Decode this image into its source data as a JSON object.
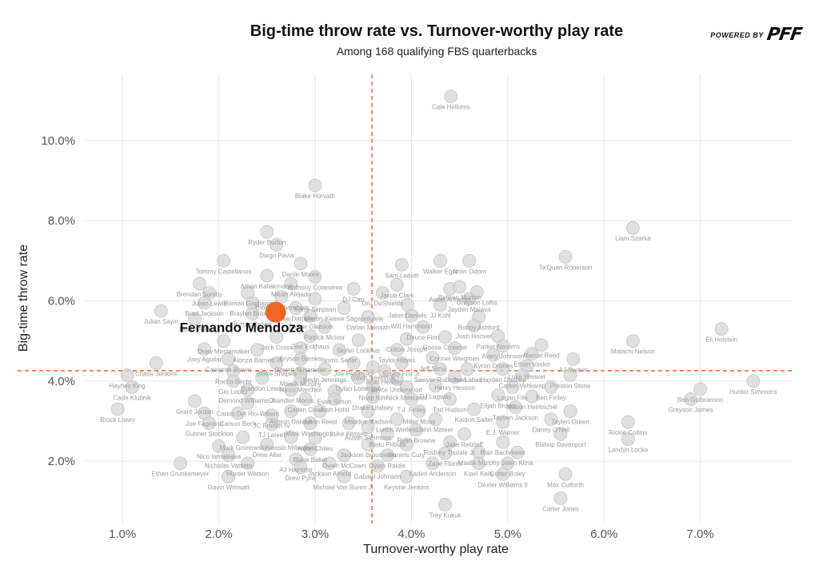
{
  "header": {
    "title": "Big-time throw rate vs. Turnover-worthy play rate",
    "subtitle": "Among 168 qualifying FBS quarterbacks",
    "brand_small": "POWERED BY",
    "brand_logo": "PFF"
  },
  "colors": {
    "highlight": "#f26522",
    "point": "#d6d6d6",
    "grid": "#e6e6e6",
    "refline": "#f26522"
  },
  "chart_data": {
    "type": "scatter",
    "title": "Big-time throw rate vs. Turnover-worthy play rate",
    "subtitle": "Among 168 qualifying FBS quarterbacks",
    "xlabel": "Turnover-worthy play rate",
    "ylabel": "Big-time throw rate",
    "xlim": [
      0.6,
      7.95
    ],
    "ylim": [
      0.45,
      11.65
    ],
    "xticks": [
      1.0,
      2.0,
      3.0,
      4.0,
      5.0,
      6.0,
      7.0
    ],
    "yticks": [
      2.0,
      4.0,
      6.0,
      8.0,
      10.0
    ],
    "xtick_labels": [
      "1.0%",
      "2.0%",
      "3.0%",
      "4.0%",
      "5.0%",
      "6.0%",
      "7.0%"
    ],
    "ytick_labels": [
      "2.0%",
      "4.0%",
      "6.0%",
      "8.0%",
      "10.0%"
    ],
    "grid": true,
    "ref_lines": {
      "x": 3.59,
      "y": 4.26
    },
    "highlight": {
      "name": "Fernando Mendoza",
      "x": 2.59,
      "y": 5.72
    },
    "points": [
      {
        "name": "Cale Hellums",
        "x": 4.41,
        "y": 11.1
      },
      {
        "name": "Blake Horvath",
        "x": 3.0,
        "y": 8.88
      },
      {
        "name": "Liam Szarka",
        "x": 6.3,
        "y": 7.82
      },
      {
        "name": "Ryder Burton",
        "x": 2.5,
        "y": 7.72
      },
      {
        "name": "Diego Pavia",
        "x": 2.6,
        "y": 7.4
      },
      {
        "name": "Tommy Castellanos",
        "x": 2.05,
        "y": 7.0
      },
      {
        "name": "Dante Moore",
        "x": 2.85,
        "y": 6.93
      },
      {
        "name": "Walker Eget",
        "x": 4.3,
        "y": 7.0
      },
      {
        "name": "Amin Odom",
        "x": 4.6,
        "y": 7.0
      },
      {
        "name": "Ta'Quan Roberson",
        "x": 5.6,
        "y": 7.1
      },
      {
        "name": "Sam Leavitt",
        "x": 3.9,
        "y": 6.9
      },
      {
        "name": "Athan Kaliakmanis",
        "x": 2.5,
        "y": 6.63
      },
      {
        "name": "Anthony Colandrea",
        "x": 3.0,
        "y": 6.6
      },
      {
        "name": "Brendan Sorsby",
        "x": 1.8,
        "y": 6.43
      },
      {
        "name": "Micah Alejado",
        "x": 2.75,
        "y": 6.43
      },
      {
        "name": "Jacob Clark",
        "x": 3.85,
        "y": 6.4
      },
      {
        "name": "Aidan Armenta",
        "x": 4.4,
        "y": 6.3
      },
      {
        "name": "Behren Morton",
        "x": 4.5,
        "y": 6.35
      },
      {
        "name": "Grayson Loftis",
        "x": 4.68,
        "y": 6.22
      },
      {
        "name": "Julian Lewis",
        "x": 1.9,
        "y": 6.2
      },
      {
        "name": "Roman Gagliano",
        "x": 2.3,
        "y": 6.2
      },
      {
        "name": "DJ Carr",
        "x": 3.4,
        "y": 6.3
      },
      {
        "name": "Dru DeShields",
        "x": 3.7,
        "y": 6.2
      },
      {
        "name": "Jayden Maiava",
        "x": 4.6,
        "y": 6.05
      },
      {
        "name": "Thomas Chambers",
        "x": 2.65,
        "y": 6.1
      },
      {
        "name": "Kerry Simpson",
        "x": 3.0,
        "y": 6.05
      },
      {
        "name": "Brad Jackson",
        "x": 1.85,
        "y": 5.95
      },
      {
        "name": "Braylon Braxton",
        "x": 2.35,
        "y": 5.95
      },
      {
        "name": "Jalon Daniels",
        "x": 3.96,
        "y": 5.9
      },
      {
        "name": "JJ Kohl",
        "x": 4.3,
        "y": 5.9
      },
      {
        "name": "Julian Sayin",
        "x": 1.4,
        "y": 5.75
      },
      {
        "name": "Luke Dampier",
        "x": 2.8,
        "y": 5.82
      },
      {
        "name": "Maron-Keawe Sagapolutele",
        "x": 3.3,
        "y": 5.82
      },
      {
        "name": "Byrum Brown",
        "x": 2.35,
        "y": 5.68
      },
      {
        "name": "Tucker Gleason",
        "x": 2.95,
        "y": 5.62
      },
      {
        "name": "Darian Mensah",
        "x": 3.55,
        "y": 5.6
      },
      {
        "name": "Will Hammond",
        "x": 4.0,
        "y": 5.63
      },
      {
        "name": "Bobby Ashford",
        "x": 4.7,
        "y": 5.6
      },
      {
        "name": "Noah Fifita",
        "x": 1.75,
        "y": 5.55
      },
      {
        "name": "Patrick McIvor",
        "x": 3.1,
        "y": 5.35
      },
      {
        "name": "Deuce Finn",
        "x": 4.12,
        "y": 5.35
      },
      {
        "name": "Josh Hoover",
        "x": 4.65,
        "y": 5.38
      },
      {
        "name": "Eli Holstein",
        "x": 7.22,
        "y": 5.3
      },
      {
        "name": "Jack Cross",
        "x": 2.6,
        "y": 5.1
      },
      {
        "name": "Zevi Eckhaus",
        "x": 2.95,
        "y": 5.12
      },
      {
        "name": "Skyler Locklear",
        "x": 3.45,
        "y": 5.02
      },
      {
        "name": "Colton Joseph",
        "x": 3.95,
        "y": 5.05
      },
      {
        "name": "Goose Crowder",
        "x": 4.35,
        "y": 5.1
      },
      {
        "name": "Parker Navarro",
        "x": 4.9,
        "y": 5.12
      },
      {
        "name": "Drew Mestemaker",
        "x": 2.05,
        "y": 5.0
      },
      {
        "name": "Malachi Nelson",
        "x": 6.3,
        "y": 5.0
      },
      {
        "name": "Bryson Barnes",
        "x": 2.85,
        "y": 4.82
      },
      {
        "name": "Norris Seiter",
        "x": 3.25,
        "y": 4.78
      },
      {
        "name": "Taylor Hayes",
        "x": 3.85,
        "y": 4.78
      },
      {
        "name": "Conner Weigman",
        "x": 4.45,
        "y": 4.82
      },
      {
        "name": "Avery Johnson",
        "x": 4.95,
        "y": 4.88
      },
      {
        "name": "Marcel Reed",
        "x": 5.35,
        "y": 4.9
      },
      {
        "name": "Joey Aguilar",
        "x": 1.85,
        "y": 4.8
      },
      {
        "name": "Alonza Barnett III",
        "x": 2.4,
        "y": 4.78
      },
      {
        "name": "Kyron Drones",
        "x": 4.85,
        "y": 4.65
      },
      {
        "name": "Ethan Vasko",
        "x": 5.25,
        "y": 4.68
      },
      {
        "name": "AJ Swann",
        "x": 5.68,
        "y": 4.55
      },
      {
        "name": "Garrett Nussmeier",
        "x": 2.85,
        "y": 4.55
      },
      {
        "name": "Jeff Sims",
        "x": 4.22,
        "y": 4.58
      },
      {
        "name": "Cameron Brown",
        "x": 2.1,
        "y": 4.55
      },
      {
        "name": "Blake Shapen",
        "x": 2.6,
        "y": 4.45
      },
      {
        "name": "Joe Pesansky",
        "x": 3.4,
        "y": 4.45
      },
      {
        "name": "Scotty Fox Jr.",
        "x": 3.9,
        "y": 4.45
      },
      {
        "name": "Luke Weaver",
        "x": 5.2,
        "y": 4.38
      },
      {
        "name": "Chase Jenkins",
        "x": 1.35,
        "y": 4.45
      },
      {
        "name": "Kevin Jennings",
        "x": 3.1,
        "y": 4.3
      },
      {
        "name": "Gavin Sawchuk",
        "x": 3.6,
        "y": 4.35
      },
      {
        "name": "Sawyer Robertson",
        "x": 4.3,
        "y": 4.3
      },
      {
        "name": "Joe Labas",
        "x": 4.58,
        "y": 4.3
      },
      {
        "name": "Hayden Dencey",
        "x": 4.95,
        "y": 4.3
      },
      {
        "name": "Rocco Becht",
        "x": 2.15,
        "y": 4.25
      },
      {
        "name": "Haynes King",
        "x": 1.05,
        "y": 4.15
      },
      {
        "name": "Maalik Murphy",
        "x": 2.85,
        "y": 4.2
      },
      {
        "name": "Aron Heatley",
        "x": 3.72,
        "y": 4.25
      },
      {
        "name": "Henry Hesson",
        "x": 4.45,
        "y": 4.1
      },
      {
        "name": "Caden Veltkamp",
        "x": 5.15,
        "y": 4.15
      },
      {
        "name": "Preston Stone",
        "x": 5.65,
        "y": 4.15
      },
      {
        "name": "Hunter Simmons",
        "x": 7.55,
        "y": 4.0
      },
      {
        "name": "Brandon Lewis",
        "x": 2.45,
        "y": 4.08
      },
      {
        "name": "Nicco Marchiol",
        "x": 2.85,
        "y": 4.05
      },
      {
        "name": "Dylan Lonergan",
        "x": 3.45,
        "y": 4.08
      },
      {
        "name": "Bryce Underwood",
        "x": 3.85,
        "y": 4.05
      },
      {
        "name": "Gio Lopez",
        "x": 2.15,
        "y": 4.0
      },
      {
        "name": "Cade Klubnik",
        "x": 1.1,
        "y": 3.85
      },
      {
        "name": "Noah Kim",
        "x": 3.6,
        "y": 3.85
      },
      {
        "name": "Nick Minicucci",
        "x": 3.95,
        "y": 3.85
      },
      {
        "name": "DJ Lagway",
        "x": 4.25,
        "y": 3.88
      },
      {
        "name": "Logan Fife",
        "x": 5.05,
        "y": 3.85
      },
      {
        "name": "Ben Finley",
        "x": 5.45,
        "y": 3.85
      },
      {
        "name": "Ben Gulbranson",
        "x": 7.0,
        "y": 3.8
      },
      {
        "name": "Demond Williams Jr.",
        "x": 2.3,
        "y": 3.78
      },
      {
        "name": "Chandler Morris",
        "x": 2.75,
        "y": 3.78
      },
      {
        "name": "Evan Simon",
        "x": 3.2,
        "y": 3.75
      },
      {
        "name": "Elijah Brown",
        "x": 4.9,
        "y": 3.65
      },
      {
        "name": "Mason Heintschel",
        "x": 5.25,
        "y": 3.62
      },
      {
        "name": "Caden Creel",
        "x": 2.9,
        "y": 3.55
      },
      {
        "name": "Josh Holst",
        "x": 3.2,
        "y": 3.55
      },
      {
        "name": "Drake Lindsey",
        "x": 3.6,
        "y": 3.6
      },
      {
        "name": "T.J. Finley",
        "x": 4.0,
        "y": 3.55
      },
      {
        "name": "Tad Hudson",
        "x": 4.4,
        "y": 3.55
      },
      {
        "name": "Grayson James",
        "x": 6.9,
        "y": 3.55
      },
      {
        "name": "Grant Jordan",
        "x": 1.75,
        "y": 3.5
      },
      {
        "name": "Carlos Del Rio-Wilson",
        "x": 2.3,
        "y": 3.45
      },
      {
        "name": "Kaidon Salter",
        "x": 4.65,
        "y": 3.3
      },
      {
        "name": "Tayven Jackson",
        "x": 5.08,
        "y": 3.35
      },
      {
        "name": "Taylen Green",
        "x": 5.65,
        "y": 3.25
      },
      {
        "name": "Brock Lowry",
        "x": 0.95,
        "y": 3.3
      },
      {
        "name": "Ashton Daniels",
        "x": 2.75,
        "y": 3.25
      },
      {
        "name": "Julian Reed",
        "x": 3.05,
        "y": 3.25
      },
      {
        "name": "Maddux Madsen",
        "x": 3.55,
        "y": 3.25
      },
      {
        "name": "Miller Moss",
        "x": 4.08,
        "y": 3.25
      },
      {
        "name": "Joe Fagnano",
        "x": 1.85,
        "y": 3.2
      },
      {
        "name": "Carson Beck",
        "x": 2.2,
        "y": 3.2
      },
      {
        "name": "JC French IV",
        "x": 2.55,
        "y": 3.15
      },
      {
        "name": "Danny O'Neil",
        "x": 5.45,
        "y": 3.05
      },
      {
        "name": "Lunch Winfield",
        "x": 3.85,
        "y": 3.05
      },
      {
        "name": "John Mateer",
        "x": 4.25,
        "y": 3.05
      },
      {
        "name": "E.J. Warner",
        "x": 4.95,
        "y": 2.98
      },
      {
        "name": "Rickie Collins",
        "x": 6.25,
        "y": 2.98
      },
      {
        "name": "Gunner Stockton",
        "x": 1.9,
        "y": 2.95
      },
      {
        "name": "TJ Lateef",
        "x": 2.55,
        "y": 2.92
      },
      {
        "name": "Mark Washington",
        "x": 2.95,
        "y": 2.95
      },
      {
        "name": "Luke Altmyer",
        "x": 3.35,
        "y": 2.95
      },
      {
        "name": "Austin Simmons",
        "x": 3.55,
        "y": 2.85
      },
      {
        "name": "Ryan Browne",
        "x": 4.05,
        "y": 2.78
      },
      {
        "name": "Beau Pribula",
        "x": 3.75,
        "y": 2.68
      },
      {
        "name": "Jake Retzlaff",
        "x": 4.55,
        "y": 2.68
      },
      {
        "name": "Bishop Davenport",
        "x": 5.55,
        "y": 2.68
      },
      {
        "name": "Mark Gronowski",
        "x": 2.25,
        "y": 2.6
      },
      {
        "name": "Alessio Milivojevic",
        "x": 2.75,
        "y": 2.6
      },
      {
        "name": "Aidan Chiles",
        "x": 3.0,
        "y": 2.58
      },
      {
        "name": "Landyn Locke",
        "x": 6.25,
        "y": 2.55
      },
      {
        "name": "Rodney Tisdale Jr.",
        "x": 4.4,
        "y": 2.48
      },
      {
        "name": "Blair Bachmeier",
        "x": 4.95,
        "y": 2.48
      },
      {
        "name": "Nico Iamaleava",
        "x": 2.0,
        "y": 2.38
      },
      {
        "name": "Drew Allar",
        "x": 2.5,
        "y": 2.42
      },
      {
        "name": "Jackson Brousseau",
        "x": 3.55,
        "y": 2.42
      },
      {
        "name": "Daniels Cury",
        "x": 3.95,
        "y": 2.42
      },
      {
        "name": "Blake Baker",
        "x": 2.95,
        "y": 2.3
      },
      {
        "name": "Zane Flores",
        "x": 4.35,
        "y": 2.2
      },
      {
        "name": "Maalik Murphy",
        "x": 4.7,
        "y": 2.22
      },
      {
        "name": "Jalen Kitna",
        "x": 5.1,
        "y": 2.22
      },
      {
        "name": "Nicholas Vattiato",
        "x": 2.1,
        "y": 2.15
      },
      {
        "name": "Owen McCown",
        "x": 3.3,
        "y": 2.15
      },
      {
        "name": "Dylan Raiola",
        "x": 3.75,
        "y": 2.15
      },
      {
        "name": "AJ Hairston",
        "x": 2.8,
        "y": 2.05
      },
      {
        "name": "Ethan Grunkemeyer",
        "x": 1.6,
        "y": 1.95
      },
      {
        "name": "Hunter Watson",
        "x": 2.3,
        "y": 1.95
      },
      {
        "name": "Jackson Arnold",
        "x": 3.15,
        "y": 1.95
      },
      {
        "name": "Kaden Anderson",
        "x": 4.22,
        "y": 1.95
      },
      {
        "name": "Kiael Kelly",
        "x": 4.7,
        "y": 1.95
      },
      {
        "name": "Cutter Boley",
        "x": 5.0,
        "y": 1.95
      },
      {
        "name": "Gabarri Johnson",
        "x": 3.65,
        "y": 1.88
      },
      {
        "name": "Drew Pyne",
        "x": 2.85,
        "y": 1.85
      },
      {
        "name": "Dexter Williams II",
        "x": 4.95,
        "y": 1.68
      },
      {
        "name": "Max Cutforth",
        "x": 5.6,
        "y": 1.68
      },
      {
        "name": "Gavin Wimsatt",
        "x": 2.1,
        "y": 1.62
      },
      {
        "name": "Michael Van Buren Jr.",
        "x": 3.3,
        "y": 1.62
      },
      {
        "name": "Keyone Jenkins",
        "x": 3.95,
        "y": 1.62
      },
      {
        "name": "Trey Kukuk",
        "x": 4.35,
        "y": 0.92
      },
      {
        "name": "Carter Jones",
        "x": 5.55,
        "y": 1.08
      }
    ]
  }
}
